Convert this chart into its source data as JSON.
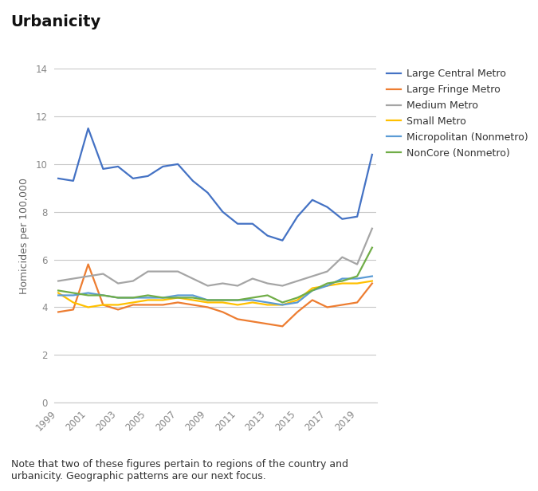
{
  "title": "Urbanicity",
  "ylabel": "Homicides per 100,000",
  "note": "Note that two of these figures pertain to regions of the country and\nurbanicity. Geographic patterns are our next focus.",
  "years": [
    1999,
    2000,
    2001,
    2002,
    2003,
    2004,
    2005,
    2006,
    2007,
    2008,
    2009,
    2010,
    2011,
    2012,
    2013,
    2014,
    2015,
    2016,
    2017,
    2018,
    2019,
    2020
  ],
  "series": {
    "Large Central Metro": {
      "color": "#4472C4",
      "values": [
        9.4,
        9.3,
        11.5,
        9.8,
        9.9,
        9.4,
        9.5,
        9.9,
        10.0,
        9.3,
        8.8,
        8.0,
        7.5,
        7.5,
        7.0,
        6.8,
        7.8,
        8.5,
        8.2,
        7.7,
        7.8,
        10.4
      ]
    },
    "Large Fringe Metro": {
      "color": "#ED7D31",
      "values": [
        3.8,
        3.9,
        5.8,
        4.1,
        3.9,
        4.1,
        4.1,
        4.1,
        4.2,
        4.1,
        4.0,
        3.8,
        3.5,
        3.4,
        3.3,
        3.2,
        3.8,
        4.3,
        4.0,
        4.1,
        4.2,
        5.0
      ]
    },
    "Medium Metro": {
      "color": "#A5A5A5",
      "values": [
        5.1,
        5.2,
        5.3,
        5.4,
        5.0,
        5.1,
        5.5,
        5.5,
        5.5,
        5.2,
        4.9,
        5.0,
        4.9,
        5.2,
        5.0,
        4.9,
        5.1,
        5.3,
        5.5,
        6.1,
        5.8,
        7.3
      ]
    },
    "Small Metro": {
      "color": "#FFC000",
      "values": [
        4.6,
        4.2,
        4.0,
        4.1,
        4.1,
        4.2,
        4.3,
        4.3,
        4.4,
        4.3,
        4.2,
        4.2,
        4.1,
        4.2,
        4.1,
        4.1,
        4.3,
        4.8,
        4.9,
        5.0,
        5.0,
        5.1
      ]
    },
    "Micropolitan (Nonmetro)": {
      "color": "#5B9BD5",
      "values": [
        4.5,
        4.5,
        4.6,
        4.5,
        4.4,
        4.4,
        4.4,
        4.4,
        4.5,
        4.5,
        4.3,
        4.3,
        4.3,
        4.3,
        4.2,
        4.1,
        4.2,
        4.7,
        4.9,
        5.2,
        5.2,
        5.3
      ]
    },
    "NonCore (Nonmetro)": {
      "color": "#70AD47",
      "values": [
        4.7,
        4.6,
        4.5,
        4.5,
        4.4,
        4.4,
        4.5,
        4.4,
        4.4,
        4.4,
        4.3,
        4.3,
        4.3,
        4.4,
        4.5,
        4.2,
        4.4,
        4.7,
        5.0,
        5.1,
        5.3,
        6.5
      ]
    }
  },
  "ylim": [
    0,
    14
  ],
  "yticks": [
    0,
    2,
    4,
    6,
    8,
    10,
    12,
    14
  ],
  "xtick_years": [
    1999,
    2001,
    2003,
    2005,
    2007,
    2009,
    2011,
    2013,
    2015,
    2017,
    2019
  ],
  "background_color": "#ffffff",
  "grid_color": "#C8C8C8",
  "title_fontsize": 14,
  "label_fontsize": 9,
  "tick_fontsize": 8.5,
  "note_fontsize": 9,
  "line_width": 1.6
}
